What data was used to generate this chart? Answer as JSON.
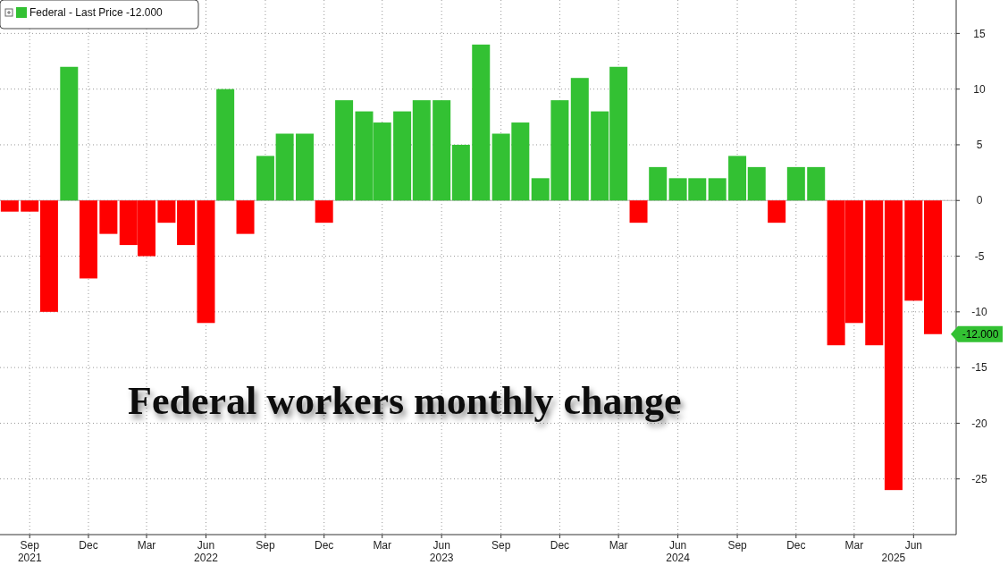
{
  "chart_data": {
    "type": "bar",
    "title": "Federal workers monthly change",
    "x": [
      "2021-08",
      "2021-09",
      "2021-10",
      "2021-11",
      "2021-12",
      "2022-01",
      "2022-02",
      "2022-03",
      "2022-04",
      "2022-05",
      "2022-06",
      "2022-07",
      "2022-08",
      "2022-09",
      "2022-10",
      "2022-11",
      "2022-12",
      "2023-01",
      "2023-02",
      "2023-03",
      "2023-04",
      "2023-05",
      "2023-06",
      "2023-07",
      "2023-08",
      "2023-09",
      "2023-10",
      "2023-11",
      "2023-12",
      "2024-01",
      "2024-02",
      "2024-03",
      "2024-04",
      "2024-05",
      "2024-06",
      "2024-07",
      "2024-08",
      "2024-09",
      "2024-10",
      "2024-11",
      "2024-12",
      "2025-01",
      "2025-02",
      "2025-03",
      "2025-04",
      "2025-05",
      "2025-06",
      "2025-07"
    ],
    "series": [
      {
        "name": "Federal - Last Price -12.000",
        "color": "#33c133",
        "values": [
          -1,
          -1,
          -10,
          12,
          -7,
          -3,
          -4,
          -5,
          -2,
          -4,
          -11,
          10,
          -3,
          4,
          6,
          6,
          -2,
          9,
          8,
          7,
          8,
          9,
          9,
          5,
          14,
          6,
          7,
          2,
          9,
          11,
          8,
          12,
          -2,
          3,
          2,
          2,
          2,
          4,
          3,
          -2,
          3,
          3,
          -13,
          -11,
          -13,
          -26,
          -9,
          -12
        ],
        "colors": [
          "#ff0000",
          "#ff0000",
          "#ff0000",
          "#33c133",
          "#ff0000",
          "#ff0000",
          "#ff0000",
          "#ff0000",
          "#ff0000",
          "#ff0000",
          "#ff0000",
          "#33c133",
          "#ff0000",
          "#33c133",
          "#33c133",
          "#33c133",
          "#ff0000",
          "#33c133",
          "#33c133",
          "#33c133",
          "#33c133",
          "#33c133",
          "#33c133",
          "#33c133",
          "#33c133",
          "#33c133",
          "#33c133",
          "#33c133",
          "#33c133",
          "#33c133",
          "#33c133",
          "#33c133",
          "#ff0000",
          "#33c133",
          "#33c133",
          "#33c133",
          "#33c133",
          "#33c133",
          "#33c133",
          "#ff0000",
          "#33c133",
          "#33c133",
          "#ff0000",
          "#ff0000",
          "#ff0000",
          "#ff0000",
          "#ff0000",
          "#ff0000"
        ]
      }
    ],
    "xlim": [
      "2021-07-17",
      "2025-08-06"
    ],
    "xticks": [
      {
        "value": "2021-09",
        "label": "Sep"
      },
      {
        "value": "2021-12",
        "label": "Dec"
      },
      {
        "value": "2022-03",
        "label": "Mar"
      },
      {
        "value": "2022-06",
        "label": "Jun"
      },
      {
        "value": "2022-09",
        "label": "Sep"
      },
      {
        "value": "2022-12",
        "label": "Dec"
      },
      {
        "value": "2023-03",
        "label": "Mar"
      },
      {
        "value": "2023-06",
        "label": "Jun"
      },
      {
        "value": "2023-09",
        "label": "Sep"
      },
      {
        "value": "2023-12",
        "label": "Dec"
      },
      {
        "value": "2024-03",
        "label": "Mar"
      },
      {
        "value": "2024-06",
        "label": "Jun"
      },
      {
        "value": "2024-09",
        "label": "Sep"
      },
      {
        "value": "2024-12",
        "label": "Dec"
      },
      {
        "value": "2025-03",
        "label": "Mar"
      },
      {
        "value": "2025-06",
        "label": "Jun"
      }
    ],
    "ylim": [
      -30,
      18
    ],
    "yticks": [
      -25,
      -20,
      -15,
      -10,
      -5,
      0,
      5,
      10,
      15
    ],
    "x2lim": [
      "2021-07-17",
      "2025-08-06"
    ],
    "x2ticks": [
      {
        "value": "2021-09",
        "label": "2021"
      },
      {
        "value": "2022-06",
        "label": "2022"
      },
      {
        "value": "2023-06",
        "label": "2023"
      },
      {
        "value": "2024-06",
        "label": "2024"
      },
      {
        "value": "2025-05",
        "label": "2025"
      }
    ],
    "annotations": [
      {
        "text": "-12.000",
        "x": "2025-07",
        "y": -12
      }
    ],
    "grid": true,
    "legend": "top left"
  }
}
